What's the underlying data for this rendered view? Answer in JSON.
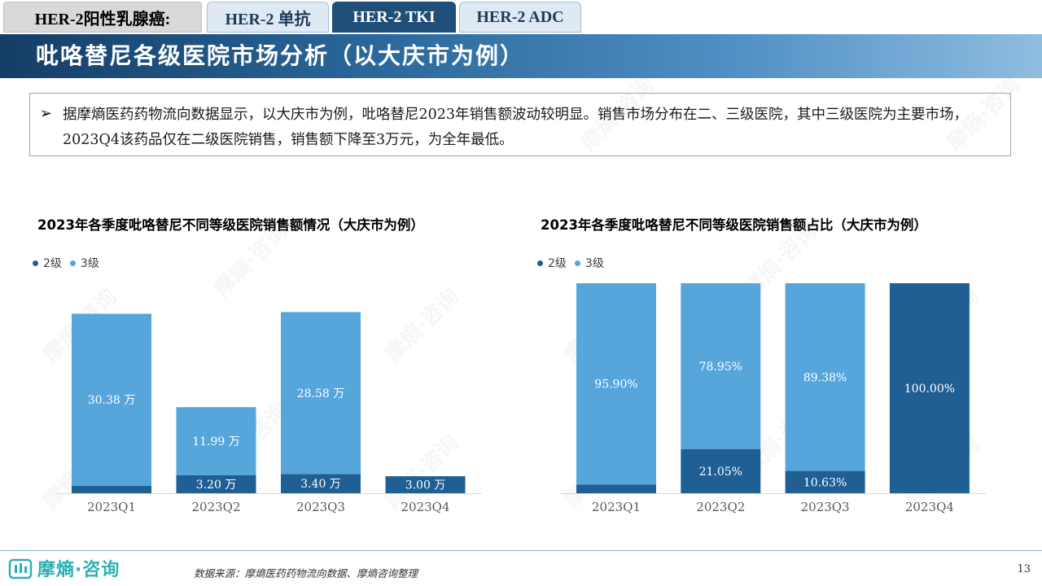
{
  "tabs": [
    {
      "label": "HER-2阳性乳腺癌:",
      "state": "first"
    },
    {
      "label": "HER-2 单抗",
      "state": "normal"
    },
    {
      "label": "HER-2 TKI",
      "state": "active"
    },
    {
      "label": "HER-2 ADC",
      "state": "normal"
    }
  ],
  "banner_title": "吡咯替尼各级医院市场分析（以大庆市为例）",
  "summary": {
    "bullet": "➢",
    "text": "据摩熵医药药物流向数据显示，以大庆市为例，吡咯替尼2023年销售额波动较明显。销售市场分布在二、三级医院，其中三级医院为主要市场，2023Q4该药品仅在二级医院销售，销售额下降至3万元，为全年最低。"
  },
  "chart_data": [
    {
      "type": "bar",
      "stacked": true,
      "title": "2023年各季度吡咯替尼不同等级医院销售额情况（大庆市为例）",
      "categories": [
        "2023Q1",
        "2023Q2",
        "2023Q3",
        "2023Q4"
      ],
      "series": [
        {
          "name": "2级",
          "color": "#1f5f94",
          "values": [
            1.3,
            3.2,
            3.4,
            3.0
          ],
          "labels": [
            "",
            "3.20 万",
            "3.40 万",
            "3.00 万"
          ]
        },
        {
          "name": "3级",
          "color": "#56a6dc",
          "values": [
            30.38,
            11.99,
            28.58,
            0
          ],
          "labels": [
            "30.38 万",
            "11.99 万",
            "28.58 万",
            ""
          ]
        }
      ],
      "ylim": [
        0,
        35
      ],
      "legend_position": "top-left"
    },
    {
      "type": "bar",
      "stacked": true,
      "percent": true,
      "title": "2023年各季度吡咯替尼不同等级医院销售额占比（大庆市为例）",
      "categories": [
        "2023Q1",
        "2023Q2",
        "2023Q3",
        "2023Q4"
      ],
      "series": [
        {
          "name": "2级",
          "color": "#1f5f94",
          "values": [
            4.1,
            21.05,
            10.63,
            100.0
          ],
          "labels": [
            "",
            "21.05%",
            "10.63%",
            "100.00%"
          ]
        },
        {
          "name": "3级",
          "color": "#56a6dc",
          "values": [
            95.9,
            78.95,
            89.38,
            0
          ],
          "labels": [
            "95.90%",
            "78.95%",
            "89.38%",
            ""
          ]
        }
      ],
      "ylim": [
        0,
        100
      ],
      "legend_position": "top-left"
    }
  ],
  "footer": {
    "logo_text": "摩熵·咨询",
    "source": "数据来源：摩熵医药药物流向数据、摩熵咨询整理",
    "page": "13"
  }
}
